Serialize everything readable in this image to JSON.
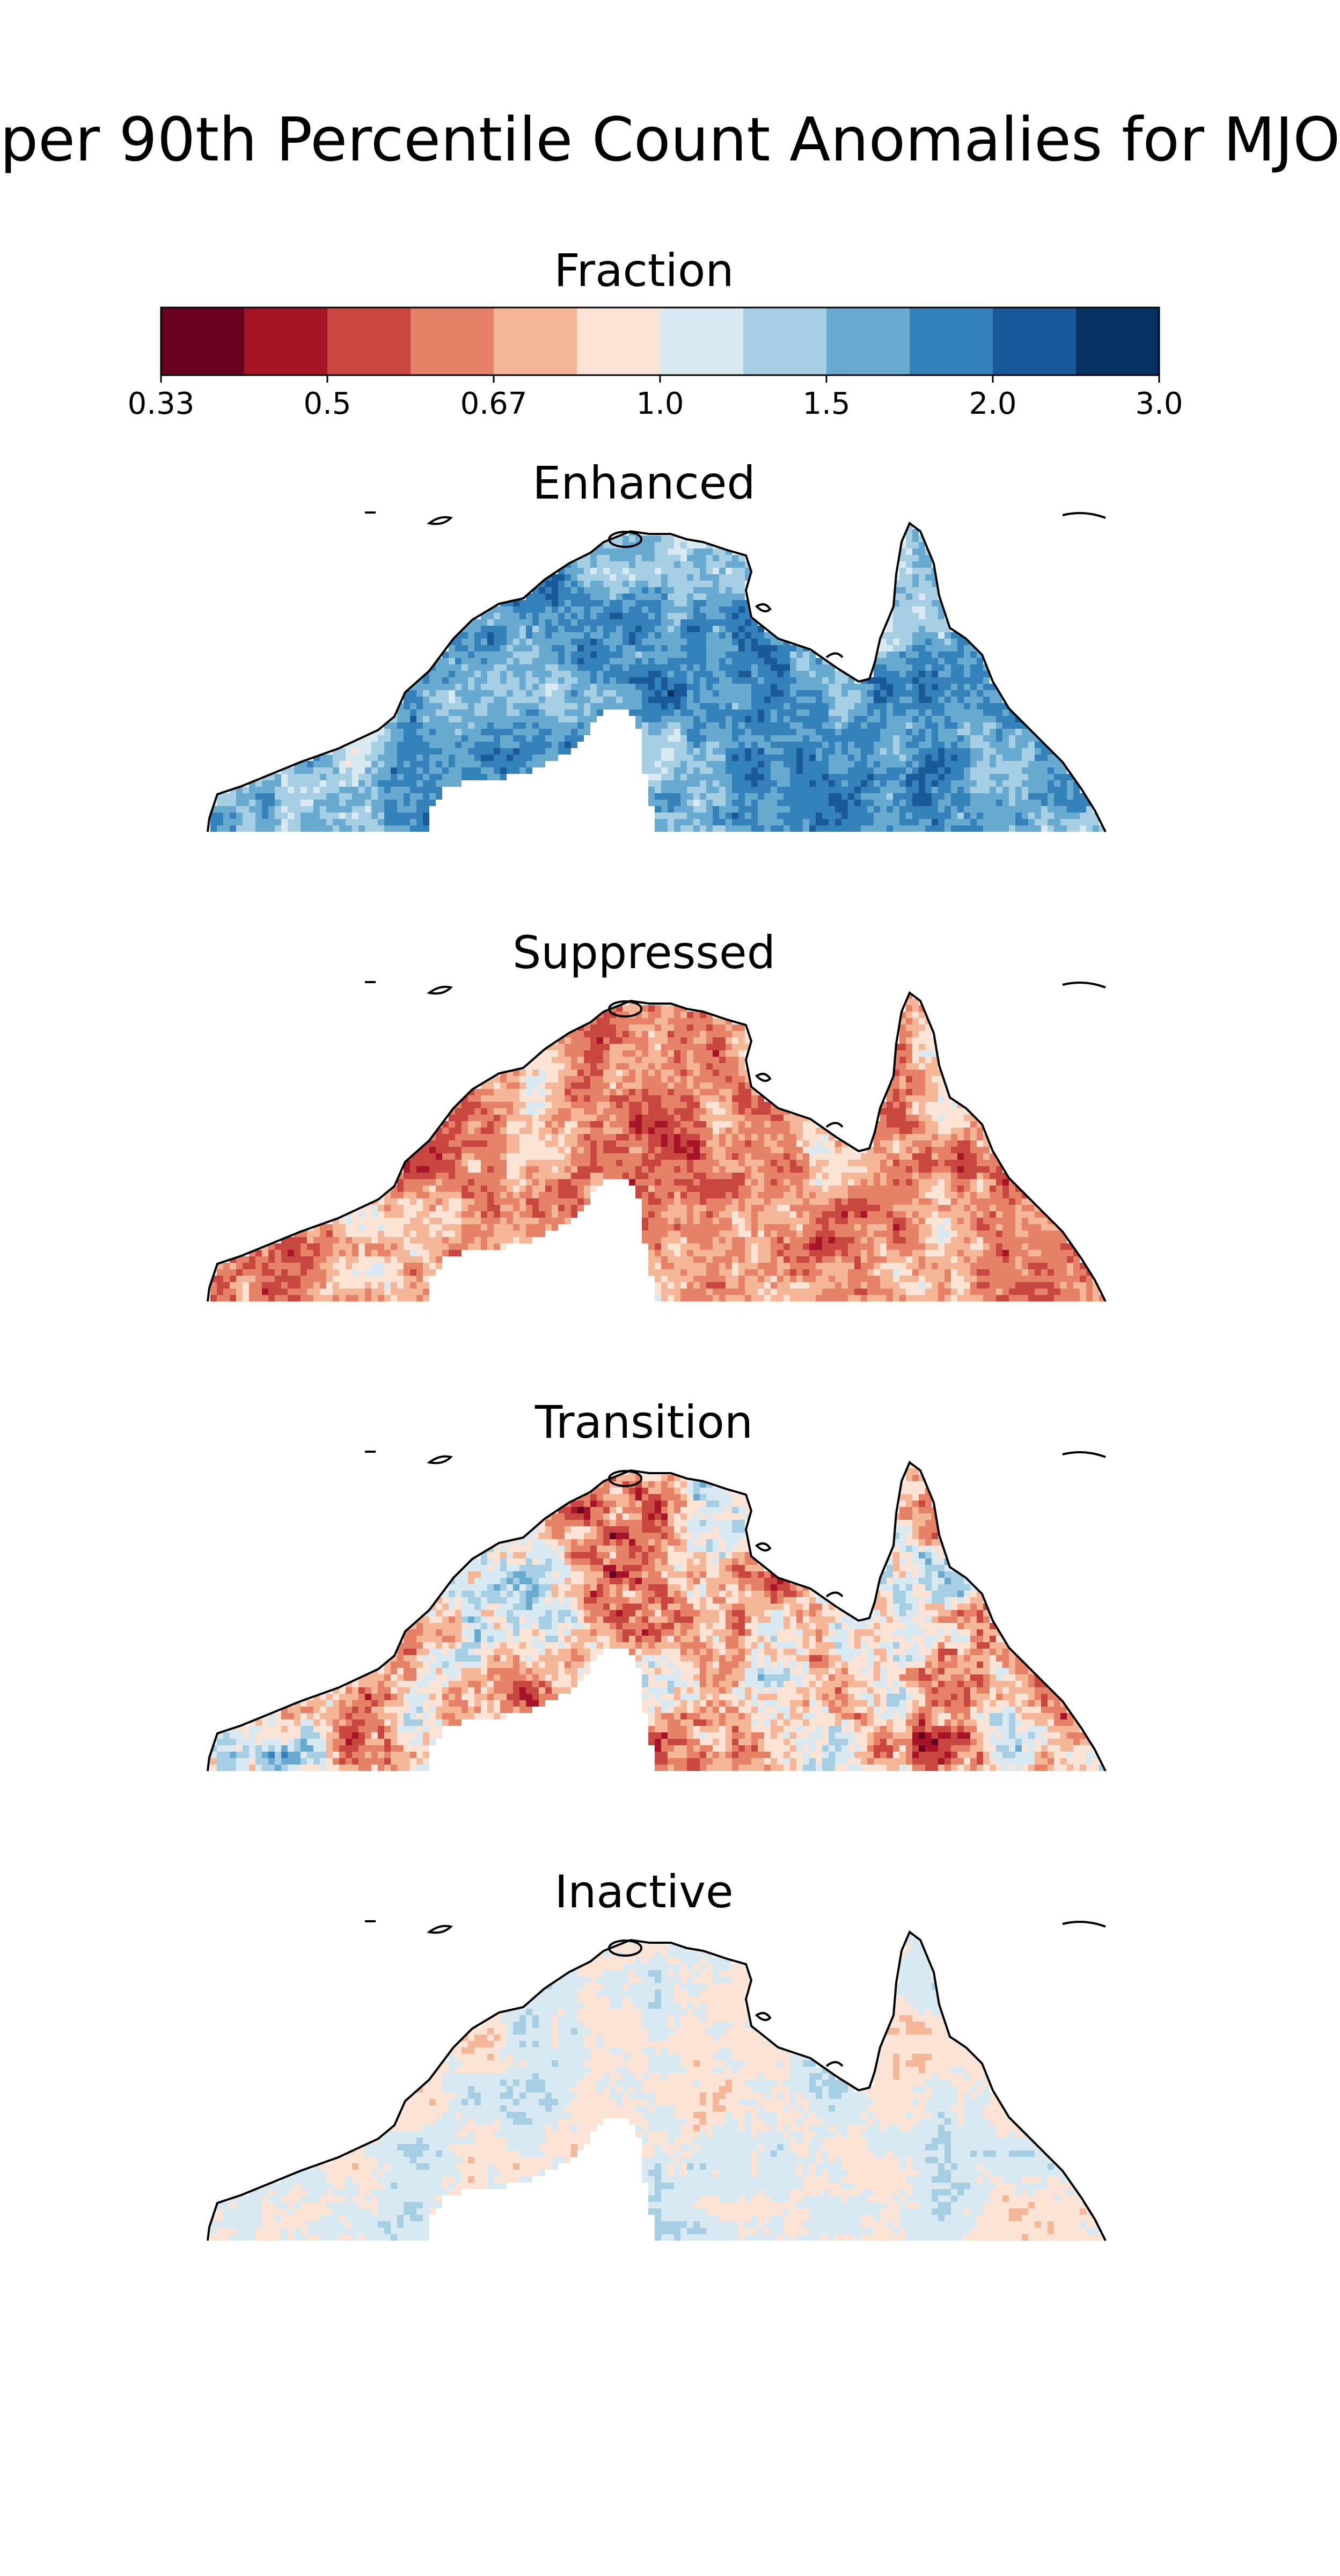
{
  "figure": {
    "title": "per 90th Percentile Count Anomalies for MJO"
  },
  "colorbar": {
    "label": "Fraction",
    "tick_labels": [
      "0.33",
      "0.5",
      "0.67",
      "1.0",
      "1.5",
      "2.0",
      "3.0"
    ],
    "colors": [
      "#67001f",
      "#a81529",
      "#c94741",
      "#e58267",
      "#f6b799",
      "#fbe3d6",
      "#d9e9f1",
      "#a7cfe4",
      "#69abd0",
      "#3581b9",
      "#1b5a9a",
      "#053061"
    ]
  },
  "chart_data": {
    "type": "heatmap",
    "title": "per 90th Percentile Count Anomalies for MJO",
    "colorbar_label": "Fraction",
    "colorbar_ticks": [
      0.33,
      0.5,
      0.67,
      1.0,
      1.5,
      2.0,
      3.0
    ],
    "panels": [
      {
        "title": "Enhanced",
        "dominant_range": "1.0–2.0",
        "description_level": "mostly above 1"
      },
      {
        "title": "Suppressed",
        "dominant_range": "0.33–1.0",
        "description_level": "mostly below 1"
      },
      {
        "title": "Transition",
        "dominant_range": "0.33–1.5",
        "description_level": "mixed"
      },
      {
        "title": "Inactive",
        "dominant_range": "0.67–1.5",
        "description_level": "near 1"
      }
    ]
  }
}
